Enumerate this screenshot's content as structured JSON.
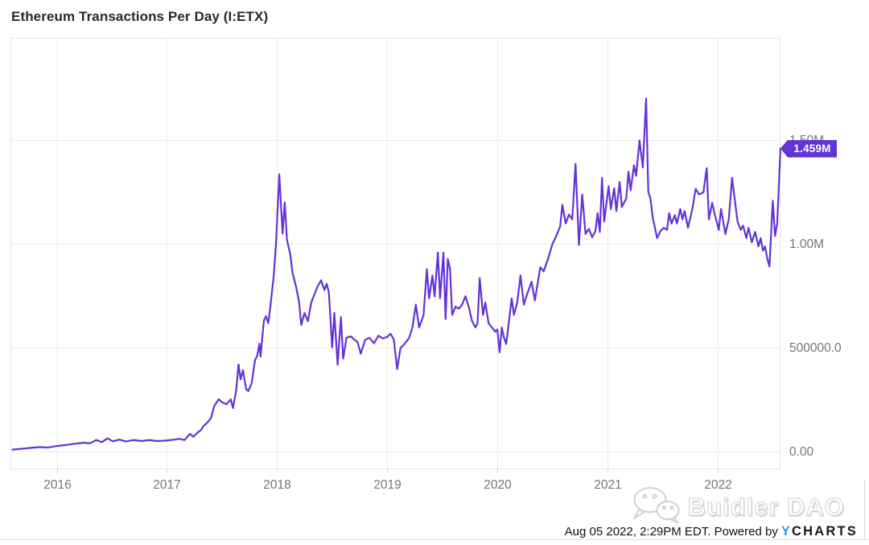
{
  "title": "Ethereum Transactions Per Day (I:ETX)",
  "badge": {
    "label": "1.459M"
  },
  "watermark": {
    "label": "Buidler DAO",
    "logo": "wechat-icon"
  },
  "footer": {
    "timestamp": "Aug 05 2022, 2:29PM EDT. Powered by",
    "brand_y": "Y",
    "brand_rest": "CHARTS"
  },
  "colors": {
    "line": "#6333d8",
    "badge_bg": "#6234d8",
    "grid": "#ececec",
    "plot_border": "#e3e3e3",
    "tick": "#cccccc",
    "axis_text": "#757575"
  },
  "chart_data": {
    "type": "line",
    "title": "Ethereum Transactions Per Day (I:ETX)",
    "series_name": "Ethereum Transactions Per Day (I:ETX)",
    "unit": "transactions per day (millions)",
    "legend": "none",
    "grid": "on",
    "x_domain": [
      2015.58,
      2022.57
    ],
    "y_domain_millions": [
      -0.085,
      1.992
    ],
    "x_ticks": [
      {
        "value": 2016,
        "label": "2016"
      },
      {
        "value": 2017,
        "label": "2017"
      },
      {
        "value": 2018,
        "label": "2018"
      },
      {
        "value": 2019,
        "label": "2019"
      },
      {
        "value": 2020,
        "label": "2020"
      },
      {
        "value": 2021,
        "label": "2021"
      },
      {
        "value": 2022,
        "label": "2022"
      }
    ],
    "y_ticks": [
      {
        "value": 0.0,
        "label": "0.00"
      },
      {
        "value": 0.5,
        "label": "500000.0"
      },
      {
        "value": 1.0,
        "label": "1.00M"
      },
      {
        "value": 1.5,
        "label": "1.50M"
      }
    ],
    "last_point": {
      "x": 2022.57,
      "value_millions": 1.459,
      "label": "1.459M"
    },
    "points": [
      [
        2015.6,
        0.01
      ],
      [
        2015.68,
        0.014
      ],
      [
        2015.76,
        0.018
      ],
      [
        2015.84,
        0.022
      ],
      [
        2015.92,
        0.02
      ],
      [
        2016.0,
        0.027
      ],
      [
        2016.08,
        0.032
      ],
      [
        2016.16,
        0.038
      ],
      [
        2016.24,
        0.043
      ],
      [
        2016.3,
        0.04
      ],
      [
        2016.36,
        0.056
      ],
      [
        2016.41,
        0.046
      ],
      [
        2016.46,
        0.064
      ],
      [
        2016.51,
        0.05
      ],
      [
        2016.57,
        0.058
      ],
      [
        2016.63,
        0.049
      ],
      [
        2016.7,
        0.056
      ],
      [
        2016.77,
        0.051
      ],
      [
        2016.84,
        0.056
      ],
      [
        2016.91,
        0.051
      ],
      [
        2016.98,
        0.053
      ],
      [
        2017.05,
        0.057
      ],
      [
        2017.11,
        0.062
      ],
      [
        2017.16,
        0.056
      ],
      [
        2017.21,
        0.086
      ],
      [
        2017.24,
        0.072
      ],
      [
        2017.28,
        0.092
      ],
      [
        2017.31,
        0.104
      ],
      [
        2017.33,
        0.122
      ],
      [
        2017.37,
        0.142
      ],
      [
        2017.4,
        0.162
      ],
      [
        2017.43,
        0.22
      ],
      [
        2017.47,
        0.252
      ],
      [
        2017.5,
        0.238
      ],
      [
        2017.54,
        0.228
      ],
      [
        2017.58,
        0.252
      ],
      [
        2017.6,
        0.21
      ],
      [
        2017.63,
        0.3
      ],
      [
        2017.65,
        0.42
      ],
      [
        2017.67,
        0.348
      ],
      [
        2017.69,
        0.392
      ],
      [
        2017.72,
        0.3
      ],
      [
        2017.74,
        0.292
      ],
      [
        2017.77,
        0.33
      ],
      [
        2017.8,
        0.44
      ],
      [
        2017.82,
        0.462
      ],
      [
        2017.84,
        0.52
      ],
      [
        2017.85,
        0.458
      ],
      [
        2017.88,
        0.63
      ],
      [
        2017.9,
        0.652
      ],
      [
        2017.92,
        0.618
      ],
      [
        2017.94,
        0.7
      ],
      [
        2017.97,
        0.848
      ],
      [
        2017.99,
        1.0
      ],
      [
        2018.02,
        1.335
      ],
      [
        2018.05,
        1.05
      ],
      [
        2018.07,
        1.2
      ],
      [
        2018.09,
        1.02
      ],
      [
        2018.12,
        0.948
      ],
      [
        2018.14,
        0.862
      ],
      [
        2018.17,
        0.8
      ],
      [
        2018.2,
        0.722
      ],
      [
        2018.22,
        0.61
      ],
      [
        2018.25,
        0.668
      ],
      [
        2018.28,
        0.628
      ],
      [
        2018.31,
        0.718
      ],
      [
        2018.34,
        0.758
      ],
      [
        2018.37,
        0.798
      ],
      [
        2018.4,
        0.825
      ],
      [
        2018.43,
        0.778
      ],
      [
        2018.45,
        0.808
      ],
      [
        2018.47,
        0.768
      ],
      [
        2018.5,
        0.502
      ],
      [
        2018.52,
        0.668
      ],
      [
        2018.55,
        0.418
      ],
      [
        2018.58,
        0.648
      ],
      [
        2018.6,
        0.448
      ],
      [
        2018.63,
        0.548
      ],
      [
        2018.67,
        0.555
      ],
      [
        2018.7,
        0.54
      ],
      [
        2018.73,
        0.528
      ],
      [
        2018.76,
        0.472
      ],
      [
        2018.8,
        0.538
      ],
      [
        2018.84,
        0.548
      ],
      [
        2018.88,
        0.522
      ],
      [
        2018.92,
        0.558
      ],
      [
        2018.96,
        0.545
      ],
      [
        2019.0,
        0.552
      ],
      [
        2019.03,
        0.568
      ],
      [
        2019.06,
        0.54
      ],
      [
        2019.09,
        0.398
      ],
      [
        2019.12,
        0.498
      ],
      [
        2019.16,
        0.52
      ],
      [
        2019.2,
        0.548
      ],
      [
        2019.23,
        0.6
      ],
      [
        2019.26,
        0.708
      ],
      [
        2019.29,
        0.598
      ],
      [
        2019.33,
        0.658
      ],
      [
        2019.36,
        0.878
      ],
      [
        2019.38,
        0.738
      ],
      [
        2019.41,
        0.848
      ],
      [
        2019.43,
        0.748
      ],
      [
        2019.46,
        0.958
      ],
      [
        2019.48,
        0.738
      ],
      [
        2019.51,
        0.958
      ],
      [
        2019.53,
        0.638
      ],
      [
        2019.55,
        0.928
      ],
      [
        2019.57,
        0.878
      ],
      [
        2019.59,
        0.658
      ],
      [
        2019.62,
        0.698
      ],
      [
        2019.65,
        0.688
      ],
      [
        2019.68,
        0.708
      ],
      [
        2019.71,
        0.748
      ],
      [
        2019.74,
        0.698
      ],
      [
        2019.77,
        0.628
      ],
      [
        2019.8,
        0.598
      ],
      [
        2019.82,
        0.618
      ],
      [
        2019.84,
        0.835
      ],
      [
        2019.87,
        0.658
      ],
      [
        2019.89,
        0.718
      ],
      [
        2019.92,
        0.618
      ],
      [
        2019.95,
        0.598
      ],
      [
        2019.98,
        0.578
      ],
      [
        2020.0,
        0.588
      ],
      [
        2020.02,
        0.478
      ],
      [
        2020.04,
        0.598
      ],
      [
        2020.06,
        0.548
      ],
      [
        2020.08,
        0.518
      ],
      [
        2020.11,
        0.648
      ],
      [
        2020.13,
        0.738
      ],
      [
        2020.15,
        0.658
      ],
      [
        2020.18,
        0.718
      ],
      [
        2020.21,
        0.848
      ],
      [
        2020.24,
        0.708
      ],
      [
        2020.27,
        0.758
      ],
      [
        2020.31,
        0.818
      ],
      [
        2020.34,
        0.728
      ],
      [
        2020.39,
        0.888
      ],
      [
        2020.42,
        0.868
      ],
      [
        2020.46,
        0.928
      ],
      [
        2020.5,
        1.0
      ],
      [
        2020.53,
        1.032
      ],
      [
        2020.57,
        1.085
      ],
      [
        2020.59,
        1.188
      ],
      [
        2020.62,
        1.098
      ],
      [
        2020.65,
        1.142
      ],
      [
        2020.68,
        1.118
      ],
      [
        2020.71,
        1.385
      ],
      [
        2020.74,
        0.995
      ],
      [
        2020.77,
        1.238
      ],
      [
        2020.8,
        1.048
      ],
      [
        2020.83,
        1.072
      ],
      [
        2020.86,
        1.032
      ],
      [
        2020.89,
        1.062
      ],
      [
        2020.91,
        1.148
      ],
      [
        2020.93,
        1.058
      ],
      [
        2020.95,
        1.318
      ],
      [
        2020.97,
        1.108
      ],
      [
        2021.01,
        1.278
      ],
      [
        2021.03,
        1.168
      ],
      [
        2021.06,
        1.268
      ],
      [
        2021.08,
        1.158
      ],
      [
        2021.11,
        1.298
      ],
      [
        2021.13,
        1.178
      ],
      [
        2021.17,
        1.218
      ],
      [
        2021.19,
        1.348
      ],
      [
        2021.21,
        1.258
      ],
      [
        2021.24,
        1.378
      ],
      [
        2021.26,
        1.328
      ],
      [
        2021.29,
        1.498
      ],
      [
        2021.32,
        1.368
      ],
      [
        2021.35,
        1.7
      ],
      [
        2021.37,
        1.252
      ],
      [
        2021.39,
        1.218
      ],
      [
        2021.41,
        1.128
      ],
      [
        2021.45,
        1.028
      ],
      [
        2021.48,
        1.062
      ],
      [
        2021.51,
        1.078
      ],
      [
        2021.54,
        1.068
      ],
      [
        2021.56,
        1.148
      ],
      [
        2021.58,
        1.098
      ],
      [
        2021.61,
        1.138
      ],
      [
        2021.63,
        1.098
      ],
      [
        2021.66,
        1.168
      ],
      [
        2021.68,
        1.118
      ],
      [
        2021.7,
        1.158
      ],
      [
        2021.73,
        1.078
      ],
      [
        2021.77,
        1.168
      ],
      [
        2021.8,
        1.265
      ],
      [
        2021.83,
        1.238
      ],
      [
        2021.87,
        1.248
      ],
      [
        2021.9,
        1.365
      ],
      [
        2021.92,
        1.118
      ],
      [
        2021.95,
        1.198
      ],
      [
        2021.97,
        1.148
      ],
      [
        2022.01,
        1.068
      ],
      [
        2022.03,
        1.168
      ],
      [
        2022.07,
        1.048
      ],
      [
        2022.1,
        1.118
      ],
      [
        2022.13,
        1.318
      ],
      [
        2022.18,
        1.108
      ],
      [
        2022.21,
        1.068
      ],
      [
        2022.23,
        1.088
      ],
      [
        2022.26,
        1.028
      ],
      [
        2022.28,
        1.078
      ],
      [
        2022.31,
        1.008
      ],
      [
        2022.34,
        1.058
      ],
      [
        2022.37,
        0.988
      ],
      [
        2022.39,
        1.028
      ],
      [
        2022.41,
        0.968
      ],
      [
        2022.43,
        0.988
      ],
      [
        2022.45,
        0.928
      ],
      [
        2022.47,
        0.892
      ],
      [
        2022.5,
        1.208
      ],
      [
        2022.52,
        1.038
      ],
      [
        2022.54,
        1.098
      ],
      [
        2022.57,
        1.459
      ]
    ]
  }
}
